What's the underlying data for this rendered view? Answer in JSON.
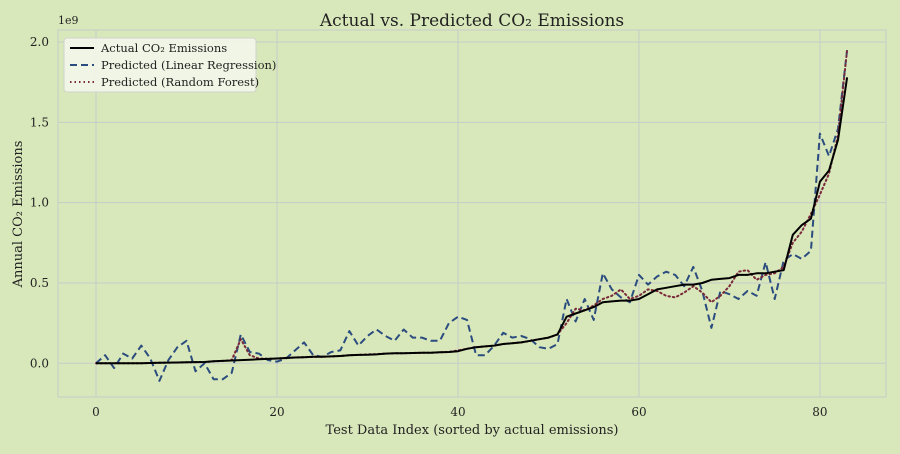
{
  "chart_data": {
    "type": "line",
    "title": "Actual vs. Predicted CO₂ Emissions",
    "xlabel": "Test Data Index (sorted by actual emissions)",
    "ylabel": "Annual CO₂ Emissions",
    "y_offset_label": "1e9",
    "xlim": [
      -4.2,
      87.3
    ],
    "ylim": [
      -0.21,
      2.075
    ],
    "x_ticks": [
      0,
      20,
      40,
      60,
      80
    ],
    "y_ticks": [
      0.0,
      0.5,
      1.0,
      1.5,
      2.0
    ],
    "y_tick_labels": [
      "0.0",
      "0.5",
      "1.0",
      "1.5",
      "2.0"
    ],
    "grid": true,
    "legend_position": "top-left",
    "background": "#d9e8bb",
    "series": [
      {
        "name": "Actual CO₂ Emissions",
        "style": "solid",
        "color": "#000000",
        "values": [
          0,
          0,
          0,
          0,
          0,
          0,
          0.002,
          0.003,
          0.004,
          0.005,
          0.006,
          0.007,
          0.008,
          0.012,
          0.015,
          0.017,
          0.02,
          0.022,
          0.025,
          0.027,
          0.03,
          0.033,
          0.036,
          0.038,
          0.04,
          0.041,
          0.043,
          0.045,
          0.05,
          0.052,
          0.053,
          0.055,
          0.06,
          0.062,
          0.063,
          0.064,
          0.065,
          0.066,
          0.068,
          0.07,
          0.075,
          0.09,
          0.1,
          0.105,
          0.11,
          0.12,
          0.125,
          0.13,
          0.14,
          0.15,
          0.16,
          0.18,
          0.29,
          0.31,
          0.33,
          0.35,
          0.38,
          0.385,
          0.39,
          0.39,
          0.4,
          0.43,
          0.46,
          0.47,
          0.48,
          0.49,
          0.49,
          0.5,
          0.52,
          0.525,
          0.53,
          0.55,
          0.55,
          0.56,
          0.56,
          0.57,
          0.58,
          0.8,
          0.86,
          0.9,
          1.13,
          1.2,
          1.39,
          1.78
        ]
      },
      {
        "name": "Predicted (Linear Regression)",
        "style": "dashed",
        "color": "#2b4c7e",
        "values": [
          0,
          0.05,
          -0.03,
          0.06,
          0.03,
          0.11,
          0.03,
          -0.11,
          0.02,
          0.1,
          0.14,
          -0.05,
          0.0,
          -0.1,
          -0.1,
          -0.06,
          0.18,
          0.07,
          0.06,
          0.02,
          0.01,
          0.03,
          0.08,
          0.13,
          0.05,
          0.04,
          0.07,
          0.08,
          0.2,
          0.11,
          0.17,
          0.21,
          0.17,
          0.14,
          0.21,
          0.16,
          0.16,
          0.14,
          0.14,
          0.25,
          0.29,
          0.27,
          0.05,
          0.05,
          0.11,
          0.19,
          0.16,
          0.17,
          0.15,
          0.1,
          0.09,
          0.12,
          0.4,
          0.26,
          0.4,
          0.27,
          0.56,
          0.46,
          0.41,
          0.38,
          0.55,
          0.49,
          0.54,
          0.57,
          0.55,
          0.48,
          0.6,
          0.45,
          0.22,
          0.45,
          0.43,
          0.4,
          0.45,
          0.42,
          0.63,
          0.4,
          0.64,
          0.68,
          0.65,
          0.7,
          1.43,
          1.29,
          1.46,
          1.95
        ]
      },
      {
        "name": "Predicted (Random Forest)",
        "style": "dotted",
        "color": "#7a2a3a",
        "values": [
          0,
          0,
          0,
          0,
          0,
          0,
          0.002,
          0.003,
          0.004,
          0.005,
          0.006,
          0.007,
          0.008,
          0.012,
          0.015,
          0.02,
          0.15,
          0.05,
          0.03,
          0.027,
          0.03,
          0.033,
          0.036,
          0.038,
          0.04,
          0.041,
          0.043,
          0.045,
          0.05,
          0.052,
          0.055,
          0.057,
          0.06,
          0.062,
          0.063,
          0.064,
          0.065,
          0.066,
          0.068,
          0.07,
          0.08,
          0.09,
          0.1,
          0.105,
          0.11,
          0.12,
          0.125,
          0.13,
          0.14,
          0.15,
          0.16,
          0.18,
          0.25,
          0.34,
          0.33,
          0.36,
          0.4,
          0.42,
          0.46,
          0.4,
          0.42,
          0.46,
          0.45,
          0.42,
          0.41,
          0.44,
          0.48,
          0.44,
          0.38,
          0.42,
          0.48,
          0.57,
          0.58,
          0.52,
          0.55,
          0.56,
          0.6,
          0.75,
          0.82,
          0.93,
          1.05,
          1.18,
          1.42,
          1.95
        ]
      }
    ]
  }
}
